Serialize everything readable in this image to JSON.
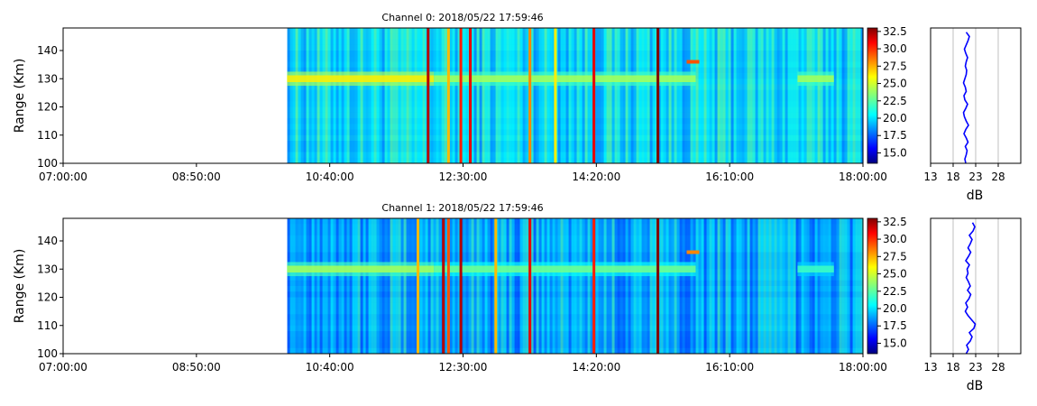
{
  "figure": {
    "panels": [
      {
        "title": "Channel 0: 2018/05/22 17:59:46",
        "ylabel": "Range (Km)"
      },
      {
        "title": "Channel 1: 2018/05/22 17:59:46",
        "ylabel": "Range (Km)"
      }
    ],
    "colorbar_ticks": [
      "15.0",
      "17.5",
      "20.0",
      "22.5",
      "25.0",
      "27.5",
      "30.0",
      "32.5"
    ],
    "profile_xlabel": "dB",
    "profile_xticks": [
      "13",
      "18",
      "23",
      "28"
    ]
  },
  "chart_data": [
    {
      "type": "heatmap",
      "title": "Channel 0: 2018/05/22 17:59:46",
      "xlabel": "",
      "ylabel": "Range (Km)",
      "x_tick_labels": [
        "07:00:00",
        "08:50:00",
        "10:40:00",
        "12:30:00",
        "14:20:00",
        "16:10:00",
        "18:00:00"
      ],
      "xlim_hours": [
        7.0,
        18.0
      ],
      "data_start_hour": 10.083,
      "y_ticks": [
        100,
        110,
        120,
        130,
        140
      ],
      "ylim": [
        100,
        148
      ],
      "colormap": "jet",
      "clim": [
        13.5,
        33.0
      ],
      "colorbar_ticks": [
        15.0,
        17.5,
        20.0,
        22.5,
        25.0,
        27.5,
        30.0,
        32.5
      ],
      "background_db": 20,
      "echo_layer": {
        "range_km": 130,
        "segments": [
          {
            "start_hour": 10.08,
            "end_hour": 12.1,
            "db": 26
          },
          {
            "start_hour": 12.1,
            "end_hour": 15.7,
            "db": 24
          },
          {
            "start_hour": 17.1,
            "end_hour": 17.6,
            "db": 24
          }
        ]
      },
      "spot": {
        "hour": 15.65,
        "range_km": 136,
        "db": 29
      },
      "strong_lines": [
        {
          "hour": 12.02,
          "db": 32
        },
        {
          "hour": 12.3,
          "db": 27
        },
        {
          "hour": 12.47,
          "db": 30
        },
        {
          "hour": 12.6,
          "db": 31
        },
        {
          "hour": 13.42,
          "db": 28
        },
        {
          "hour": 13.77,
          "db": 26
        },
        {
          "hour": 14.3,
          "db": 31
        },
        {
          "hour": 15.18,
          "db": 33
        }
      ]
    },
    {
      "type": "heatmap",
      "title": "Channel 1: 2018/05/22 17:59:46",
      "xlabel": "",
      "ylabel": "Range (Km)",
      "x_tick_labels": [
        "07:00:00",
        "08:50:00",
        "10:40:00",
        "12:30:00",
        "14:20:00",
        "16:10:00",
        "18:00:00"
      ],
      "xlim_hours": [
        7.0,
        18.0
      ],
      "data_start_hour": 10.083,
      "y_ticks": [
        100,
        110,
        120,
        130,
        140
      ],
      "ylim": [
        100,
        148
      ],
      "colormap": "jet",
      "clim": [
        13.5,
        33.0
      ],
      "colorbar_ticks": [
        15.0,
        17.5,
        20.0,
        22.5,
        25.0,
        27.5,
        30.0,
        32.5
      ],
      "background_db": 19,
      "echo_layer": {
        "range_km": 130,
        "segments": [
          {
            "start_hour": 10.08,
            "end_hour": 12.1,
            "db": 24
          },
          {
            "start_hour": 12.1,
            "end_hour": 15.7,
            "db": 23
          },
          {
            "start_hour": 17.1,
            "end_hour": 17.6,
            "db": 22
          }
        ]
      },
      "spot": {
        "hour": 15.65,
        "range_km": 136,
        "db": 28
      },
      "strong_lines": [
        {
          "hour": 11.88,
          "db": 27
        },
        {
          "hour": 12.23,
          "db": 32
        },
        {
          "hour": 12.3,
          "db": 29
        },
        {
          "hour": 12.47,
          "db": 32
        },
        {
          "hour": 12.95,
          "db": 27
        },
        {
          "hour": 13.42,
          "db": 31
        },
        {
          "hour": 14.3,
          "db": 30
        },
        {
          "hour": 15.18,
          "db": 33
        }
      ]
    },
    {
      "type": "line",
      "title": "",
      "xlabel": "dB",
      "ylabel": "",
      "xlim": [
        13,
        33
      ],
      "x_ticks": [
        13,
        18,
        23,
        28
      ],
      "ylim": [
        100,
        148
      ],
      "grid": "vertical",
      "series": [
        {
          "color": "#0000ff",
          "x": [
            20.8,
            20.6,
            20.9,
            21.1,
            20.7,
            21.3,
            20.9,
            20.4,
            20.8,
            21.4,
            20.9,
            20.5,
            20.3,
            20.8,
            21.2,
            20.6,
            20.4,
            20.9,
            20.7,
            20.3,
            20.6,
            20.9,
            21.0,
            20.7,
            20.9,
            21.2,
            20.8,
            20.5,
            20.9,
            21.3,
            21.6,
            20.9
          ],
          "y": [
            100,
            101.5,
            103,
            104.5,
            106,
            107.5,
            109,
            110.5,
            112,
            113.5,
            115,
            116.5,
            118,
            119.5,
            121,
            122.5,
            124,
            125.5,
            127,
            128.5,
            130,
            131.5,
            133,
            134.5,
            136,
            137.5,
            139,
            140.5,
            142,
            143.5,
            145,
            146.5
          ]
        }
      ]
    },
    {
      "type": "line",
      "title": "",
      "xlabel": "dB",
      "ylabel": "",
      "xlim": [
        13,
        33
      ],
      "x_ticks": [
        13,
        18,
        23,
        28
      ],
      "ylim": [
        100,
        148
      ],
      "grid": "vertical",
      "series": [
        {
          "color": "#0000ff",
          "x": [
            20.9,
            21.4,
            21.0,
            21.8,
            22.2,
            21.6,
            22.6,
            22.9,
            22.1,
            21.3,
            20.7,
            21.2,
            20.8,
            21.5,
            21.9,
            21.2,
            21.8,
            21.4,
            20.9,
            21.3,
            21.1,
            21.6,
            20.8,
            21.4,
            21.9,
            21.3,
            21.8,
            22.2,
            21.6,
            22.4,
            22.8,
            22.3
          ],
          "y": [
            100,
            101.5,
            103,
            104.5,
            106,
            107.5,
            109,
            110.5,
            112,
            113.5,
            115,
            116.5,
            118,
            119.5,
            121,
            122.5,
            124,
            125.5,
            127,
            128.5,
            130,
            131.5,
            133,
            134.5,
            136,
            137.5,
            139,
            140.5,
            142,
            143.5,
            145,
            146.5
          ]
        }
      ]
    }
  ]
}
